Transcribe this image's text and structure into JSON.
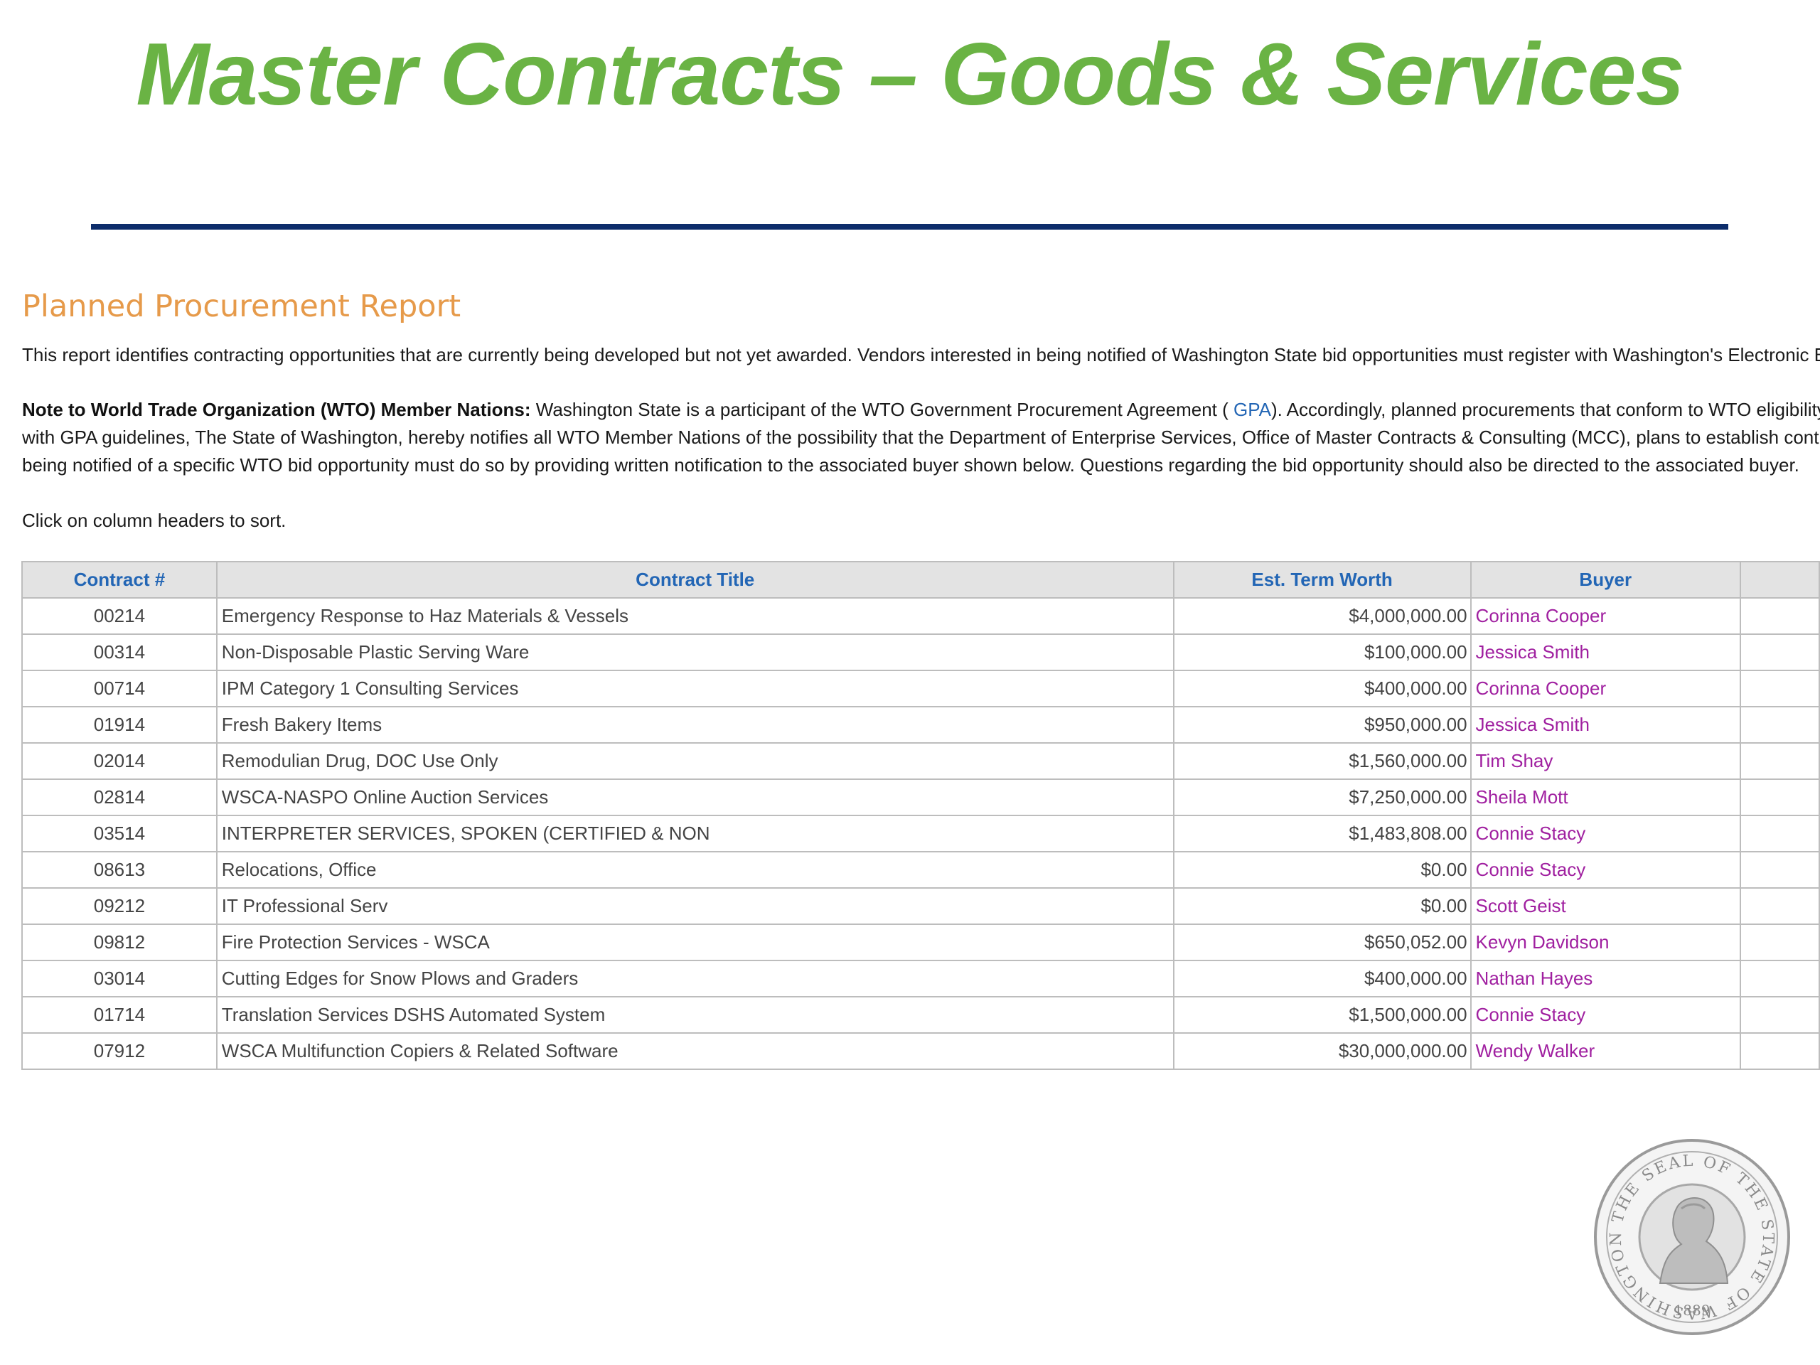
{
  "header": {
    "title": "Master Contracts – Goods & Services"
  },
  "report": {
    "heading": "Planned Procurement Report",
    "intro": "This report identifies contracting opportunities that are currently being developed but not yet awarded.  Vendors interested in being notified of Washington State bid opportunities must register with Washington's Electronic Business Solution (WEBS).",
    "wto_label": "Note to World Trade Organization (WTO) Member Nations:",
    "wto_line1_a": "Washington State is a participant of the WTO Government Procurement Agreement ( ",
    "wto_link": "GPA",
    "wto_line1_b": "). Accordingly, planned procurements that conform to WTO eligibility requirements",
    "wto_line2": "with GPA guidelines, The State of Washington, hereby notifies all WTO Member Nations of the possibility that the Department of Enterprise Services, Office of Master Contracts & Consulting (MCC), plans to establish contracts",
    "wto_line3": "being notified of a specific WTO bid opportunity must do so by providing written notification to the associated buyer shown below. Questions regarding the bid opportunity should also be directed to the associated buyer.",
    "sort_hint": "Click on column headers to sort."
  },
  "table": {
    "headers": {
      "contract": "Contract #",
      "title": "Contract Title",
      "worth": "Est. Term Worth",
      "buyer": "Buyer"
    },
    "rows": [
      {
        "contract": "00214",
        "title": "Emergency Response to Haz Materials & Vessels",
        "worth": "$4,000,000.00",
        "buyer": "Corinna Cooper"
      },
      {
        "contract": "00314",
        "title": "Non-Disposable Plastic Serving Ware",
        "worth": "$100,000.00",
        "buyer": "Jessica Smith"
      },
      {
        "contract": "00714",
        "title": "IPM Category 1 Consulting Services",
        "worth": "$400,000.00",
        "buyer": "Corinna Cooper"
      },
      {
        "contract": "01914",
        "title": "Fresh Bakery Items",
        "worth": "$950,000.00",
        "buyer": "Jessica Smith"
      },
      {
        "contract": "02014",
        "title": "Remodulian Drug, DOC Use Only",
        "worth": "$1,560,000.00",
        "buyer": "Tim Shay"
      },
      {
        "contract": "02814",
        "title": "WSCA-NASPO Online Auction Services",
        "worth": "$7,250,000.00",
        "buyer": "Sheila Mott"
      },
      {
        "contract": "03514",
        "title": "INTERPRETER SERVICES, SPOKEN (CERTIFIED & NON",
        "worth": "$1,483,808.00",
        "buyer": "Connie Stacy"
      },
      {
        "contract": "08613",
        "title": "Relocations, Office",
        "worth": "$0.00",
        "buyer": "Connie Stacy"
      },
      {
        "contract": "09212",
        "title": "IT Professional Serv",
        "worth": "$0.00",
        "buyer": "Scott Geist"
      },
      {
        "contract": "09812",
        "title": "Fire Protection Services - WSCA",
        "worth": "$650,052.00",
        "buyer": "Kevyn Davidson"
      },
      {
        "contract": "03014",
        "title": "Cutting Edges for Snow Plows and Graders",
        "worth": "$400,000.00",
        "buyer": "Nathan Hayes"
      },
      {
        "contract": "01714",
        "title": "Translation Services DSHS Automated System",
        "worth": "$1,500,000.00",
        "buyer": "Connie Stacy"
      },
      {
        "contract": "07912",
        "title": "WSCA Multifunction Copiers & Related Software",
        "worth": "$30,000,000.00",
        "buyer": "Wendy Walker"
      }
    ]
  },
  "seal": {
    "text": "THE SEAL OF THE STATE OF WASHINGTON",
    "year": "1889"
  },
  "colors": {
    "title_green": "#6ab344",
    "rule_navy": "#0d2d6b",
    "heading_orange": "#e69a4a",
    "header_blue": "#2366b5",
    "buyer_purple": "#a020a0"
  }
}
